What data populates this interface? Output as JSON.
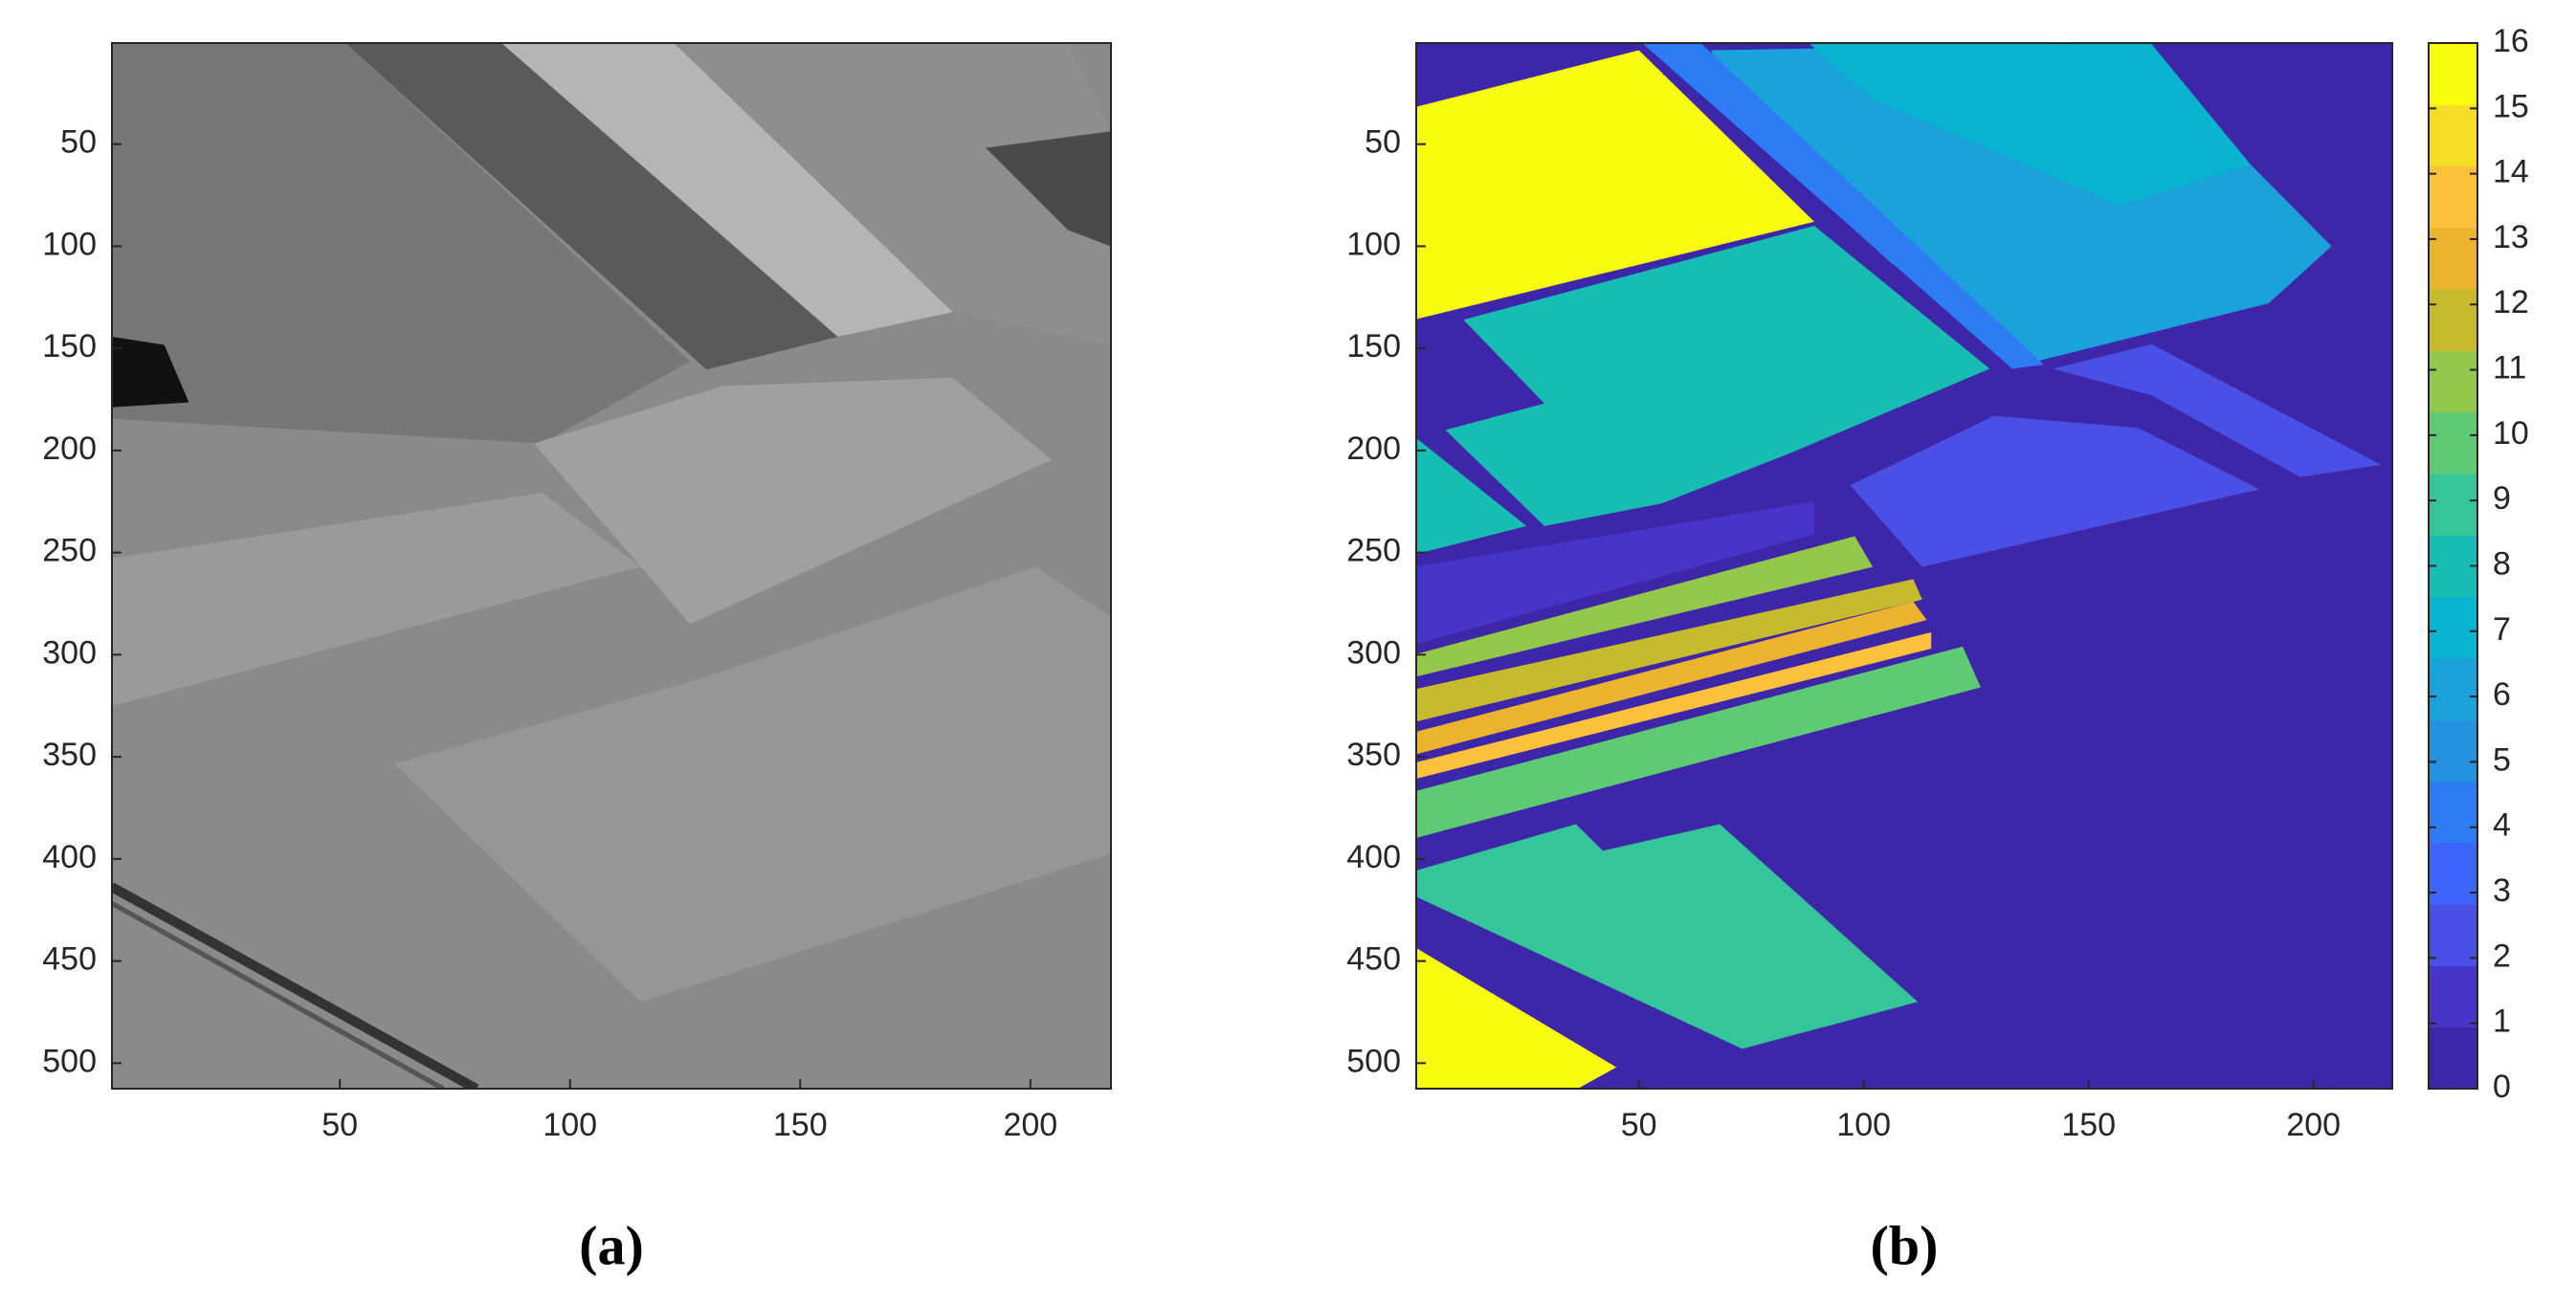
{
  "chart_data": [
    {
      "type": "image",
      "caption": "(a)",
      "xlim": [
        0.5,
        217.5
      ],
      "ylim": [
        0.5,
        512.5
      ],
      "ydir": "reverse",
      "xticks": [
        50,
        100,
        150,
        200
      ],
      "yticks": [
        50,
        100,
        150,
        200,
        250,
        300,
        350,
        400,
        450,
        500
      ]
    },
    {
      "type": "heatmap",
      "caption": "(b)",
      "xlim": [
        0.5,
        217.5
      ],
      "ylim": [
        0.5,
        512.5
      ],
      "ydir": "reverse",
      "xticks": [
        50,
        100,
        150,
        200
      ],
      "yticks": [
        50,
        100,
        150,
        200,
        250,
        300,
        350,
        400,
        450,
        500
      ],
      "colormap": [
        "#3e26a8",
        "#4734c8",
        "#4a50e6",
        "#3d65fb",
        "#2d7cf3",
        "#2492e0",
        "#1ca2da",
        "#08b3cf",
        "#17bdb3",
        "#35c59a",
        "#5fca74",
        "#93c84a",
        "#c7bb2d",
        "#ecb32e",
        "#fec13b",
        "#f5dc25",
        "#f9fb0e"
      ],
      "clim": [
        0,
        16
      ],
      "cticks": [
        0,
        1,
        2,
        3,
        4,
        5,
        6,
        7,
        8,
        9,
        10,
        11,
        12,
        13,
        14,
        15,
        16
      ],
      "background": 0,
      "regions": [
        {
          "value": 1,
          "points": [
            [
              0,
              257
            ],
            [
              89,
              225
            ],
            [
              89,
              241
            ],
            [
              0,
              295
            ]
          ]
        },
        {
          "value": 2,
          "points": [
            [
              142,
              160
            ],
            [
              164,
              148
            ],
            [
              215,
              207
            ],
            [
              197,
              213
            ],
            [
              164,
              173
            ]
          ]
        },
        {
          "value": 2,
          "points": [
            [
              97,
              217
            ],
            [
              129,
              183
            ],
            [
              161,
              189
            ],
            [
              188,
              219
            ],
            [
              113,
              257
            ]
          ]
        },
        {
          "value": 6,
          "points": [
            [
              66,
              4
            ],
            [
              146,
              1
            ],
            [
              186,
              60
            ],
            [
              204,
              100
            ],
            [
              190,
              128
            ],
            [
              139,
              156
            ],
            [
              106,
              108
            ],
            [
              73,
              42
            ]
          ]
        },
        {
          "value": 7,
          "points": [
            [
              88,
              1
            ],
            [
              164,
              1
            ],
            [
              186,
              60
            ],
            [
              157,
              80
            ],
            [
              102,
              28
            ]
          ]
        },
        {
          "value": 4,
          "points": [
            [
              51,
              1
            ],
            [
              64,
              1
            ],
            [
              140,
              158
            ],
            [
              133,
              160
            ]
          ]
        },
        {
          "value": 8,
          "points": [
            [
              11,
              136
            ],
            [
              89,
              90
            ],
            [
              128,
              160
            ],
            [
              84,
              201
            ],
            [
              55,
              226
            ],
            [
              29,
              237
            ],
            [
              7,
              190
            ],
            [
              29,
              177
            ]
          ]
        },
        {
          "value": 8,
          "points": [
            [
              0,
              193
            ],
            [
              25,
              237
            ],
            [
              0,
              251
            ]
          ]
        },
        {
          "value": 16,
          "points": [
            [
              0,
              32
            ],
            [
              50,
              4
            ],
            [
              89,
              88
            ],
            [
              0,
              136
            ]
          ]
        },
        {
          "value": 16,
          "points": [
            [
              0,
              443
            ],
            [
              45,
              502
            ],
            [
              36,
              513
            ],
            [
              0,
              513
            ]
          ]
        },
        {
          "value": 11,
          "points": [
            [
              0,
              300
            ],
            [
              98,
              242
            ],
            [
              102,
              257
            ],
            [
              0,
              311
            ]
          ]
        },
        {
          "value": 12,
          "points": [
            [
              0,
              317
            ],
            [
              111,
              263
            ],
            [
              113,
              273
            ],
            [
              0,
              333
            ]
          ]
        },
        {
          "value": 13,
          "points": [
            [
              0,
              338
            ],
            [
              111,
              274
            ],
            [
              114,
              283
            ],
            [
              0,
              349
            ]
          ]
        },
        {
          "value": 14,
          "points": [
            [
              0,
              353
            ],
            [
              115,
              289
            ],
            [
              115,
              297
            ],
            [
              0,
              361
            ]
          ]
        },
        {
          "value": 10,
          "points": [
            [
              0,
              367
            ],
            [
              122,
              296
            ],
            [
              126,
              316
            ],
            [
              0,
              390
            ]
          ]
        },
        {
          "value": 9,
          "points": [
            [
              0,
              406
            ],
            [
              36,
              383
            ],
            [
              42,
              396
            ],
            [
              68,
              383
            ],
            [
              112,
              470
            ],
            [
              73,
              493
            ],
            [
              0,
              418
            ]
          ]
        }
      ]
    }
  ]
}
